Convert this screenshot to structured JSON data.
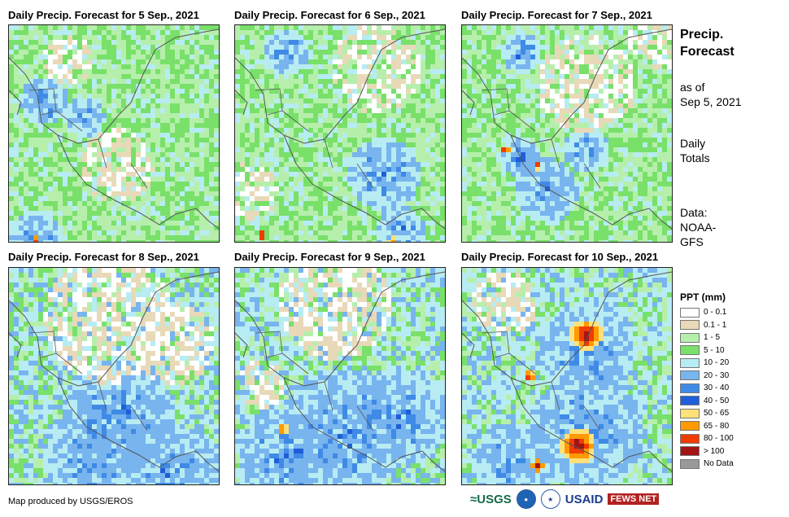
{
  "panels": [
    {
      "title": "Daily Precip. Forecast for 5 Sep., 2021"
    },
    {
      "title": "Daily Precip. Forecast for 6 Sep., 2021"
    },
    {
      "title": "Daily Precip. Forecast for 7 Sep., 2021"
    },
    {
      "title": "Daily Precip. Forecast for 8 Sep., 2021"
    },
    {
      "title": "Daily Precip. Forecast for 9 Sep., 2021"
    },
    {
      "title": "Daily Precip. Forecast for 10 Sep., 2021"
    }
  ],
  "sidebar": {
    "title_line1": "Precip.",
    "title_line2": "Forecast",
    "asof_line1": "as of",
    "asof_line2": "Sep 5, 2021",
    "totals_line1": "Daily",
    "totals_line2": "Totals",
    "data_line1": "Data:",
    "data_line2": "NOAA-",
    "data_line3": "GFS"
  },
  "legend": {
    "title": "PPT (mm)",
    "items": [
      {
        "label": "0 - 0.1",
        "color": "#ffffff"
      },
      {
        "label": "0.1 - 1",
        "color": "#e8d9b8"
      },
      {
        "label": "1 - 5",
        "color": "#b6efac"
      },
      {
        "label": "5 - 10",
        "color": "#79e06a"
      },
      {
        "label": "10 - 20",
        "color": "#b7ecf3"
      },
      {
        "label": "20 - 30",
        "color": "#78b4ee"
      },
      {
        "label": "30 - 40",
        "color": "#3f8ae6"
      },
      {
        "label": "40 - 50",
        "color": "#1f5ed8"
      },
      {
        "label": "50 - 65",
        "color": "#ffe17a"
      },
      {
        "label": "65 - 80",
        "color": "#ff9a00"
      },
      {
        "label": "80 - 100",
        "color": "#f03c00"
      },
      {
        "label": "> 100",
        "color": "#a31515"
      },
      {
        "label": "No Data",
        "color": "#999999"
      }
    ]
  },
  "footer": {
    "credit": "Map produced by USGS/EROS",
    "logo_usgs": "≈USGS",
    "logo_usaid": "USAID",
    "logo_fews": "FEWS NET"
  },
  "colors": {
    "panel_border": "#222222",
    "coastline": "#555555"
  }
}
